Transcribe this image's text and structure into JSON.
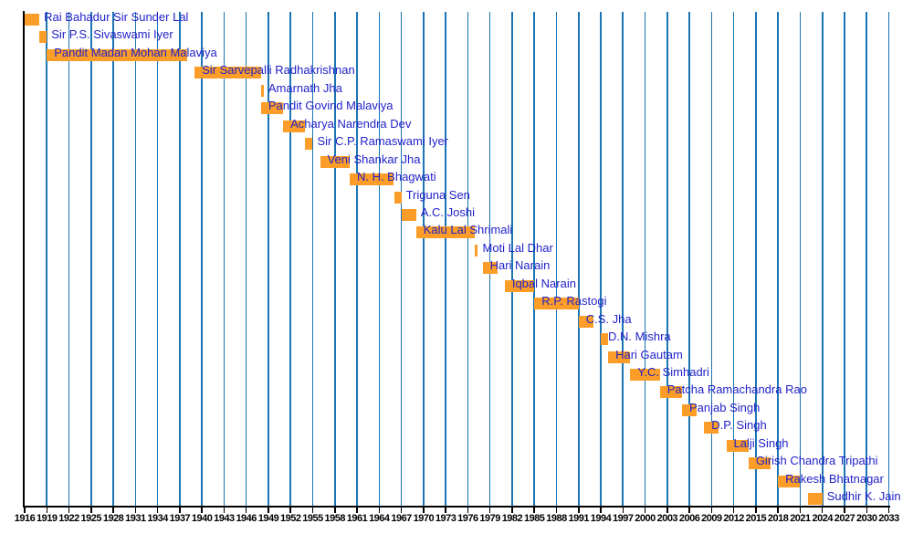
{
  "chart_data": {
    "type": "bar",
    "subtype": "horizontal-timeline-gantt",
    "description": "Timeline of tenures, one orange bar per person",
    "x_axis": {
      "start": 1916,
      "end": 2033,
      "tick_interval": 3,
      "ticks": [
        1916,
        1919,
        1922,
        1925,
        1928,
        1931,
        1934,
        1937,
        1940,
        1943,
        1946,
        1949,
        1952,
        1955,
        1958,
        1961,
        1964,
        1967,
        1970,
        1973,
        1976,
        1979,
        1982,
        1985,
        1988,
        1991,
        1994,
        1997,
        2000,
        2003,
        2006,
        2009,
        2012,
        2015,
        2018,
        2021,
        2024,
        2027,
        2030,
        2033
      ]
    },
    "bars": [
      {
        "name": "Rai Bahadur Sir Sunder Lal",
        "start": 1916,
        "end": 1918,
        "label_after_bar": true
      },
      {
        "name": "Sir P.S. Sivaswami Iyer",
        "start": 1918,
        "end": 1919,
        "label_after_bar": true
      },
      {
        "name": "Pandit Madan Mohan Malaviya",
        "start": 1919,
        "end": 1938
      },
      {
        "name": "Sir Sarvepalli Radhakrishnan",
        "start": 1939,
        "end": 1948
      },
      {
        "name": "Amarnath Jha",
        "start": 1948,
        "end": 1948,
        "label_after_bar": true
      },
      {
        "name": "Pandit Govind Malaviya",
        "start": 1948,
        "end": 1951
      },
      {
        "name": "Acharya Narendra Dev",
        "start": 1951,
        "end": 1954
      },
      {
        "name": "Sir C.P. Ramaswami Iyer",
        "start": 1954,
        "end": 1955,
        "label_after_bar": true
      },
      {
        "name": "Veni Shankar Jha",
        "start": 1956,
        "end": 1960
      },
      {
        "name": "N. H. Bhagwati",
        "start": 1960,
        "end": 1966
      },
      {
        "name": "Triguna Sen",
        "start": 1966,
        "end": 1967,
        "label_after_bar": true
      },
      {
        "name": "A.C. Joshi",
        "start": 1967,
        "end": 1969,
        "label_after_bar": true
      },
      {
        "name": "Kalu Lal Shrimali",
        "start": 1969,
        "end": 1977
      },
      {
        "name": "Moti Lal Dhar",
        "start": 1977,
        "end": 1977,
        "label_after_bar": true
      },
      {
        "name": "Hari Narain",
        "start": 1978,
        "end": 1980
      },
      {
        "name": "Iqbal Narain",
        "start": 1981,
        "end": 1985
      },
      {
        "name": "R.P. Rastogi",
        "start": 1985,
        "end": 1991
      },
      {
        "name": "C.S. Jha",
        "start": 1991,
        "end": 1993
      },
      {
        "name": "D.N. Mishra",
        "start": 1994,
        "end": 1995
      },
      {
        "name": "Hari Gautam",
        "start": 1995,
        "end": 1998
      },
      {
        "name": "Y.C. Simhadri",
        "start": 1998,
        "end": 2002
      },
      {
        "name": "Patcha Ramachandra Rao",
        "start": 2002,
        "end": 2005
      },
      {
        "name": "Panjab Singh",
        "start": 2005,
        "end": 2007
      },
      {
        "name": "D.P. Singh",
        "start": 2008,
        "end": 2010
      },
      {
        "name": "Lalji Singh",
        "start": 2011,
        "end": 2014
      },
      {
        "name": "Girish Chandra Tripathi",
        "start": 2014,
        "end": 2017
      },
      {
        "name": "Rakesh Bhatnagar",
        "start": 2018,
        "end": 2021
      },
      {
        "name": "Sudhir K. Jain",
        "start": 2022,
        "end": 2024,
        "label_after_bar": true
      }
    ],
    "colors": {
      "bar": "#FB9D28",
      "bar_label": "#2222C9",
      "gridline": "#1B75B4",
      "axis": "#000000",
      "tick_label": "#000000",
      "background": "#FFFFFF"
    },
    "layout_hints": {
      "legend": "none",
      "grid": "vertical-only",
      "orientation": "horizontal",
      "rows": 28
    }
  }
}
